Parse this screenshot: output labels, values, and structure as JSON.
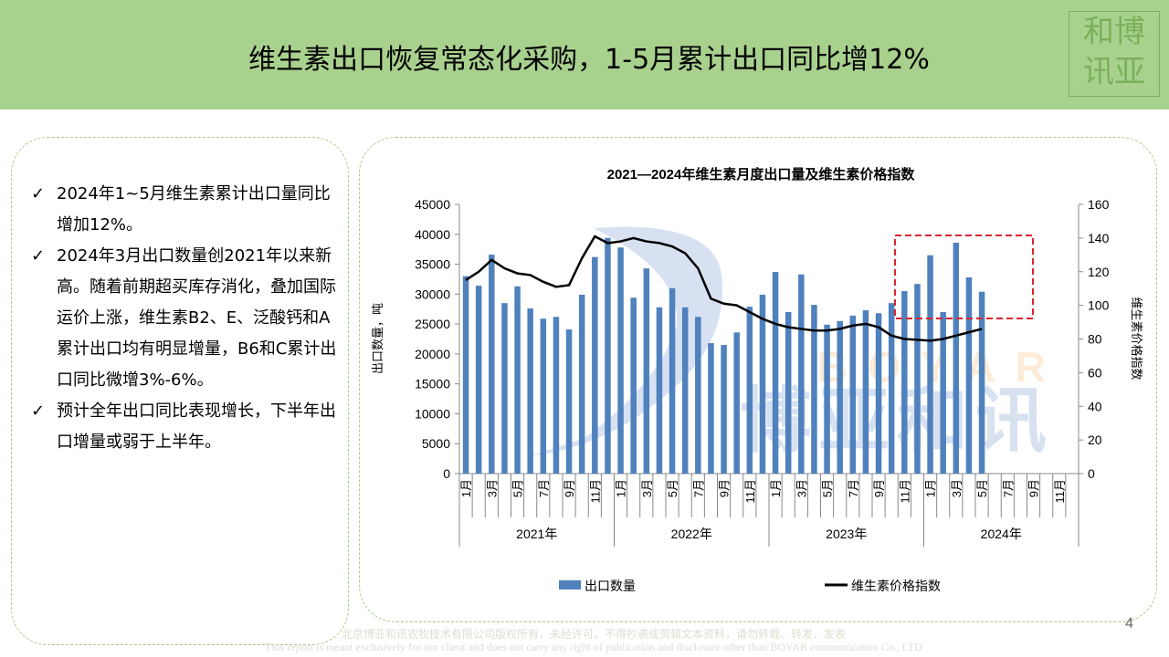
{
  "header": {
    "title": "维生素出口恢复常态化采购，1-5月累计出口同比增12%",
    "logo_text": "博亚和讯"
  },
  "bullets": [
    {
      "icon": "check-icon",
      "text": "2024年1~5月维生素累计出口量同比增加12%。"
    },
    {
      "icon": "check-icon",
      "text": "2024年3月出口数量创2021年以来新高。随着前期超买库存消化，叠加国际运价上涨，维生素B2、E、泛酸钙和A累计出口均有明显增量，B6和C累计出口同比微增3%-6%。"
    },
    {
      "icon": "check-icon",
      "text": "预计全年出口同比表现增长，下半年出口增量或弱于上半年。"
    }
  ],
  "footer": {
    "line1": "北京博亚和讯农牧技术有限公司版权所有，未经许可，不得抄袭或剪辑文本资料，请勿转载、转发、发表",
    "line2": "This report is meant exclusively for our client and does not carry any right of publication and disclosure other than BOYAR communication Co., LTD"
  },
  "page_number": "4",
  "watermark": {
    "en": "BOYAR",
    "cn": "博亚和讯"
  },
  "chart_data": {
    "type": "bar+line",
    "title": "2021—2024年维生素月度出口量及维生素价格指数",
    "ylabel": "出口数量，吨",
    "y2label": "维生素价格指数",
    "ylim": [
      0,
      45000
    ],
    "yticks": [
      0,
      5000,
      10000,
      15000,
      20000,
      25000,
      30000,
      35000,
      40000,
      45000
    ],
    "y2lim": [
      0,
      160
    ],
    "y2ticks": [
      0,
      20,
      40,
      60,
      80,
      100,
      120,
      140,
      160
    ],
    "years": [
      "2021年",
      "2022年",
      "2023年",
      "2024年"
    ],
    "month_labels": [
      "1月",
      "3月",
      "5月",
      "7月",
      "9月",
      "11月"
    ],
    "legend_position": "bottom",
    "grid": false,
    "colors": {
      "bar": "#4f81bd",
      "line": "#000000",
      "highlight": "#d9262e"
    },
    "series": [
      {
        "name": "出口数量",
        "type": "bar",
        "axis": "left",
        "values": [
          33000,
          31400,
          36600,
          28500,
          31300,
          27600,
          25900,
          26200,
          24100,
          29900,
          36200,
          39400,
          37800,
          29400,
          34300,
          27800,
          31000,
          27800,
          26200,
          21800,
          21500,
          23600,
          27900,
          29900,
          33700,
          27000,
          33300,
          28200,
          24900,
          25500,
          26400,
          27300,
          26800,
          28500,
          30500,
          31700,
          36500,
          27000,
          38600,
          32800,
          30400,
          null,
          null,
          null,
          null,
          null,
          null,
          null
        ]
      },
      {
        "name": "维生素价格指数",
        "type": "line",
        "axis": "right",
        "values": [
          115,
          120,
          127,
          122,
          119,
          118,
          114,
          111,
          112,
          128,
          141,
          137,
          138,
          140,
          138,
          137,
          135,
          131,
          122,
          104,
          101,
          100,
          96,
          92,
          89,
          87,
          86,
          85,
          85,
          86,
          88,
          89,
          87,
          82,
          80,
          79.5,
          79,
          80,
          82,
          84,
          86,
          null,
          null,
          null,
          null,
          null,
          null,
          null
        ]
      }
    ]
  }
}
